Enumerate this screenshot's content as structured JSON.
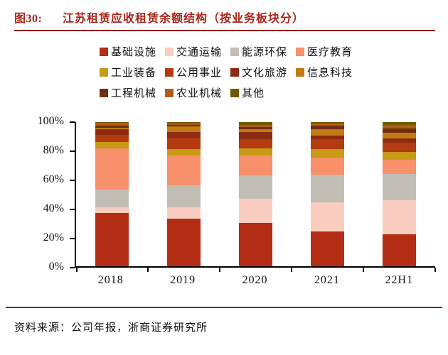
{
  "figure": {
    "label": "图30:",
    "title": "江苏租赁应收租赁余额结构（按业务板块分）",
    "accent_color": "#A8251C",
    "rule_color": "#8E1B10",
    "source_text": "资料来源：公司年报，浙商证券研究所"
  },
  "chart_data": {
    "type": "bar",
    "subtype": "stacked-percent-column",
    "title": "江苏租赁应收租赁余额结构（按业务板块分）",
    "categories": [
      "2018",
      "2019",
      "2020",
      "2021",
      "22H1"
    ],
    "y_tick_labels": [
      "0%",
      "20%",
      "40%",
      "60%",
      "80%",
      "100%"
    ],
    "ylim": [
      0,
      100
    ],
    "grid": false,
    "legend_position": "top",
    "legend_rows": [
      4,
      4,
      3
    ],
    "series": [
      {
        "name": "基础设施",
        "color": "#B32D14",
        "values": [
          37,
          33,
          30,
          24,
          22
        ]
      },
      {
        "name": "交通运输",
        "color": "#F9CEC0",
        "values": [
          4,
          8,
          17,
          20.5,
          24
        ]
      },
      {
        "name": "能源环保",
        "color": "#C2BEB4",
        "values": [
          12,
          15,
          16,
          19,
          18
        ]
      },
      {
        "name": "医疗教育",
        "color": "#F7906B",
        "values": [
          29,
          21,
          14,
          12,
          10
        ]
      },
      {
        "name": "工业装备",
        "color": "#C79B16",
        "values": [
          4,
          4.5,
          5,
          6,
          5.5
        ]
      },
      {
        "name": "公用事业",
        "color": "#B43A10",
        "values": [
          5,
          7.5,
          6,
          6.5,
          6
        ]
      },
      {
        "name": "文化旅游",
        "color": "#8E2B12",
        "values": [
          4,
          4,
          5,
          2.5,
          3
        ]
      },
      {
        "name": "信息科技",
        "color": "#C07C12",
        "values": [
          1,
          4,
          2,
          4.5,
          4
        ]
      },
      {
        "name": "工程机械",
        "color": "#6E2F10",
        "values": [
          1.5,
          1,
          1.5,
          2.5,
          3
        ]
      },
      {
        "name": "农业机械",
        "color": "#B25C12",
        "values": [
          2,
          1,
          1.5,
          1.5,
          2.5
        ]
      },
      {
        "name": "其他",
        "color": "#6E5A02",
        "values": [
          0.5,
          1,
          2,
          1,
          2
        ]
      }
    ]
  }
}
